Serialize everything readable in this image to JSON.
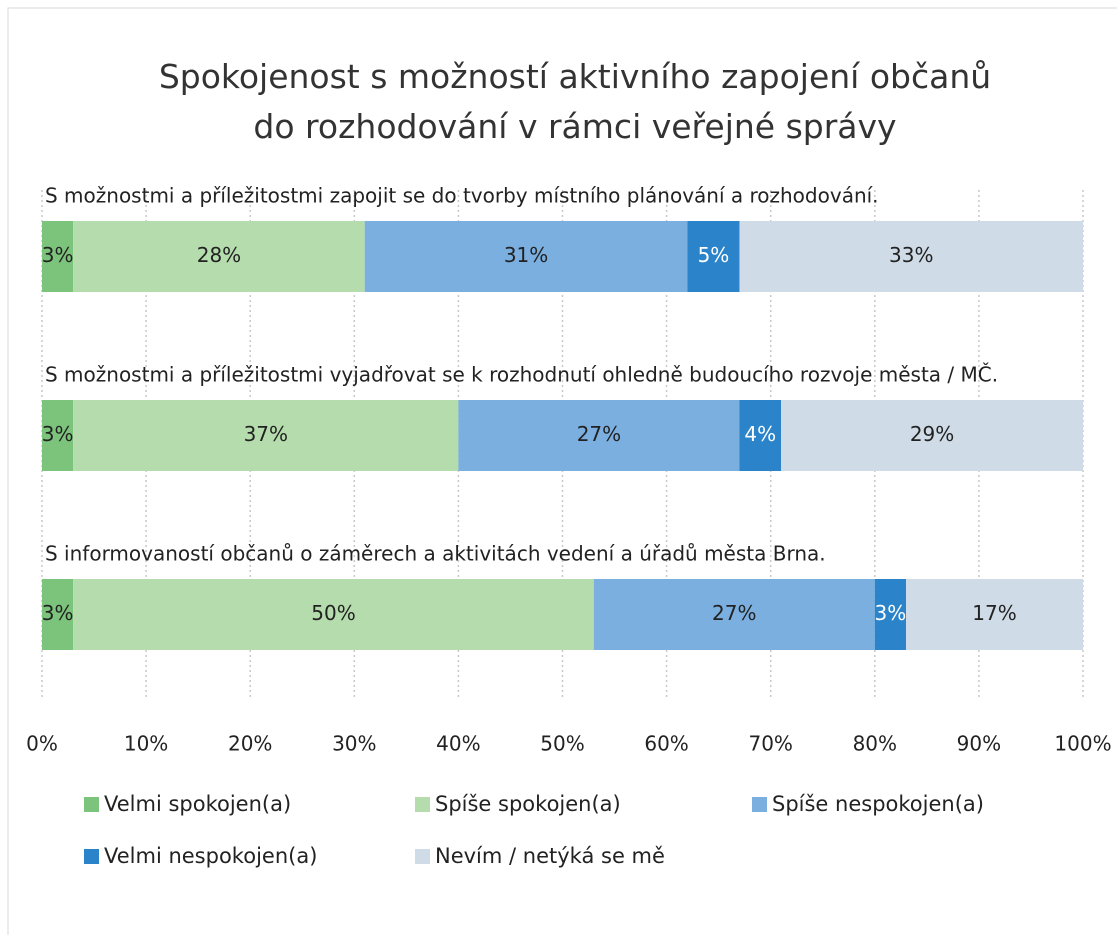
{
  "chart_data": {
    "type": "stacked_barh",
    "title": "Spokojenost s možností aktivního zapojení občanů do rozhodování v rámci veřejné správy",
    "categories": [
      "S možnostmi a příležitostmi zapojit se do tvorby místního plánování a rozhodování.",
      "S možnostmi a příležitostmi vyjadřovat se k rozhodnutí ohledně budoucího rozvoje města / MČ.",
      "S informovaností občanů o záměrech a aktivitách vedení a úřadů města Brna."
    ],
    "series": [
      {
        "name": "Velmi spokojen(a)",
        "color": "#7cc47c",
        "values": [
          3,
          3,
          3
        ],
        "value_labels": [
          "3%",
          "3%",
          "3%"
        ]
      },
      {
        "name": "Spíše spokojen(a)",
        "color": "#b5dcac",
        "values": [
          28,
          37,
          50
        ],
        "value_labels": [
          "28%",
          "37%",
          "50%"
        ]
      },
      {
        "name": "Spíše nespokojen(a)",
        "color": "#7aafe0",
        "values": [
          31,
          27,
          27
        ],
        "value_labels": [
          "31%",
          "27%",
          "27%"
        ]
      },
      {
        "name": "Velmi nespokojen(a)",
        "color": "#2b84c9",
        "values": [
          5,
          4,
          3
        ],
        "value_labels": [
          "5%",
          "4%",
          "3%"
        ]
      },
      {
        "name": "Nevím / netýká se mě",
        "color": "#cfdbe7",
        "values": [
          33,
          29,
          17
        ],
        "value_labels": [
          "33%",
          "29%",
          "17%"
        ]
      }
    ],
    "xlim": [
      0,
      100
    ],
    "xticks": [
      {
        "value": 0,
        "label": "0%"
      },
      {
        "value": 10,
        "label": "10%"
      },
      {
        "value": 20,
        "label": "20%"
      },
      {
        "value": 30,
        "label": "30%"
      },
      {
        "value": 40,
        "label": "40%"
      },
      {
        "value": 50,
        "label": "50%"
      },
      {
        "value": 60,
        "label": "60%"
      },
      {
        "value": 70,
        "label": "70%"
      },
      {
        "value": 80,
        "label": "80%"
      },
      {
        "value": 90,
        "label": "90%"
      },
      {
        "value": 100,
        "label": "100%"
      }
    ],
    "grid": true,
    "legend": "bottom"
  }
}
